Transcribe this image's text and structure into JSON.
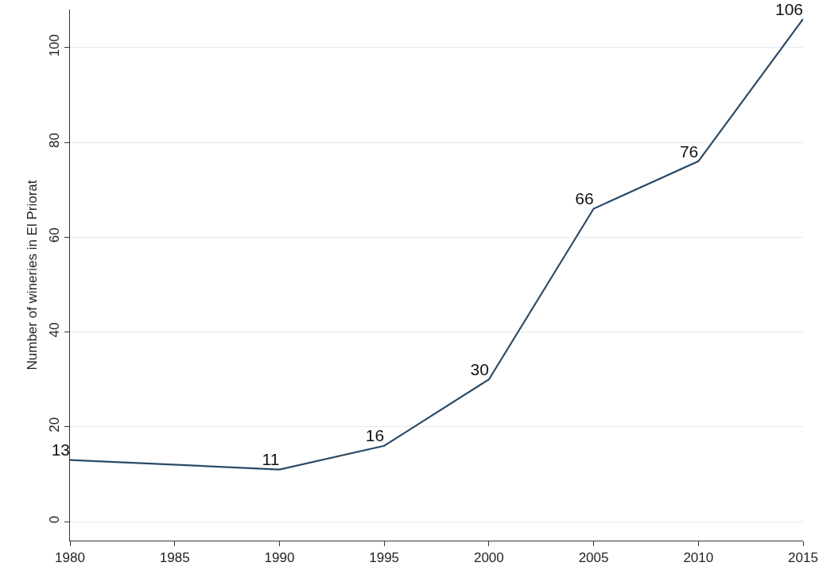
{
  "chart_data": {
    "type": "line",
    "ylabel": "Number of wineries in El Priorat",
    "x": [
      1980,
      1990,
      1995,
      2000,
      2005,
      2010,
      2015
    ],
    "series": [
      {
        "color": "#2b4a66",
        "values": [
          13,
          11,
          16,
          30,
          66,
          76,
          106
        ]
      }
    ],
    "xlim": [
      1980,
      2015
    ],
    "xticks": [
      1980,
      1985,
      1990,
      1995,
      2000,
      2005,
      2010,
      2015
    ],
    "ylim": [
      -4,
      108
    ],
    "yticks": [
      0,
      20,
      40,
      60,
      80,
      100
    ],
    "grid": "y",
    "data_labels": true,
    "marker": "none",
    "line_style": "solid"
  }
}
